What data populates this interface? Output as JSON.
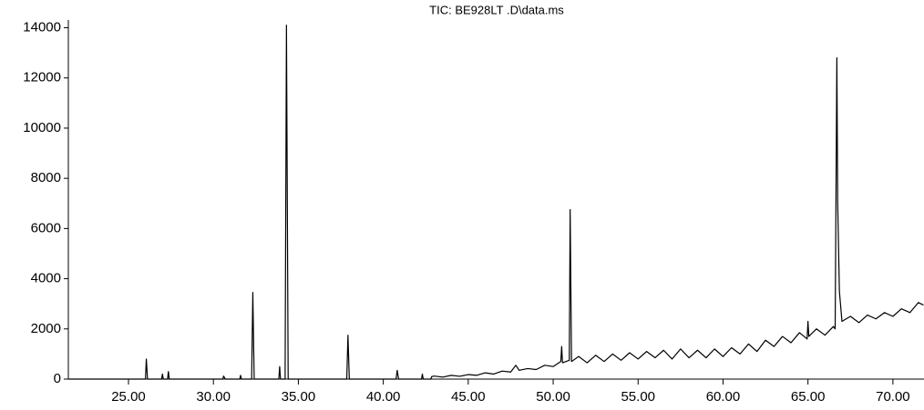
{
  "chart_data": {
    "type": "line",
    "title": "TIC: BE928LT .D\\data.ms",
    "color": "#000000",
    "x": [
      21.5,
      26.0,
      26.05,
      26.12,
      26.95,
      27.0,
      27.05,
      27.3,
      27.35,
      27.4,
      30.55,
      30.6,
      30.7,
      31.55,
      31.6,
      31.65,
      32.25,
      32.32,
      32.4,
      33.85,
      33.9,
      33.95,
      34.22,
      34.3,
      34.4,
      37.85,
      37.92,
      38.0,
      40.75,
      40.82,
      40.9,
      42.25,
      42.3,
      42.35,
      42.8,
      42.85,
      43,
      43.5,
      44,
      44.5,
      45,
      45.5,
      46,
      46.5,
      47,
      47.5,
      47.8,
      48,
      48.5,
      49,
      49.5,
      50,
      50.45,
      50.5,
      50.55,
      50.95,
      51.0,
      51.08,
      51.5,
      52,
      52.5,
      53,
      53.5,
      54,
      54.5,
      55,
      55.5,
      56,
      56.5,
      57,
      57.5,
      58,
      58.5,
      59,
      59.5,
      60,
      60.5,
      61,
      61.5,
      62,
      62.5,
      63,
      63.5,
      64,
      64.5,
      64.95,
      65.0,
      65.05,
      65.5,
      66,
      66.5,
      66.6,
      66.7,
      66.75,
      66.85,
      67,
      67.5,
      68,
      68.5,
      69,
      69.5,
      70,
      70.5,
      71,
      71.5,
      71.8
    ],
    "values": [
      0,
      0,
      800,
      0,
      0,
      200,
      0,
      0,
      300,
      0,
      0,
      120,
      0,
      0,
      150,
      0,
      0,
      3450,
      0,
      0,
      500,
      0,
      0,
      14100,
      0,
      0,
      1750,
      0,
      0,
      350,
      0,
      0,
      200,
      0,
      0,
      100,
      120,
      80,
      150,
      110,
      180,
      150,
      250,
      200,
      320,
      280,
      550,
      350,
      420,
      380,
      550,
      500,
      700,
      1300,
      650,
      750,
      6750,
      700,
      900,
      650,
      950,
      700,
      1000,
      750,
      1050,
      800,
      1100,
      850,
      1150,
      800,
      1200,
      850,
      1150,
      850,
      1200,
      900,
      1250,
      1000,
      1400,
      1100,
      1550,
      1300,
      1700,
      1450,
      1850,
      1600,
      2300,
      1700,
      2000,
      1750,
      2100,
      2000,
      12800,
      7000,
      3500,
      2300,
      2500,
      2250,
      2550,
      2400,
      2650,
      2500,
      2800,
      2650,
      3050,
      2950
    ],
    "xlim": [
      21.46,
      71.83
    ],
    "ylim": [
      0,
      14200
    ],
    "xticks": [
      {
        "value": 25,
        "label": "25.00"
      },
      {
        "value": 30,
        "label": "30.00"
      },
      {
        "value": 35,
        "label": "35.00"
      },
      {
        "value": 40,
        "label": "40.00"
      },
      {
        "value": 45,
        "label": "45.00"
      },
      {
        "value": 50,
        "label": "50.00"
      },
      {
        "value": 55,
        "label": "55.00"
      },
      {
        "value": 60,
        "label": "60.00"
      },
      {
        "value": 65,
        "label": "65.00"
      },
      {
        "value": 70,
        "label": "70.00"
      }
    ],
    "yticks": [
      0,
      2000,
      4000,
      6000,
      8000,
      10000,
      12000,
      14000
    ]
  }
}
